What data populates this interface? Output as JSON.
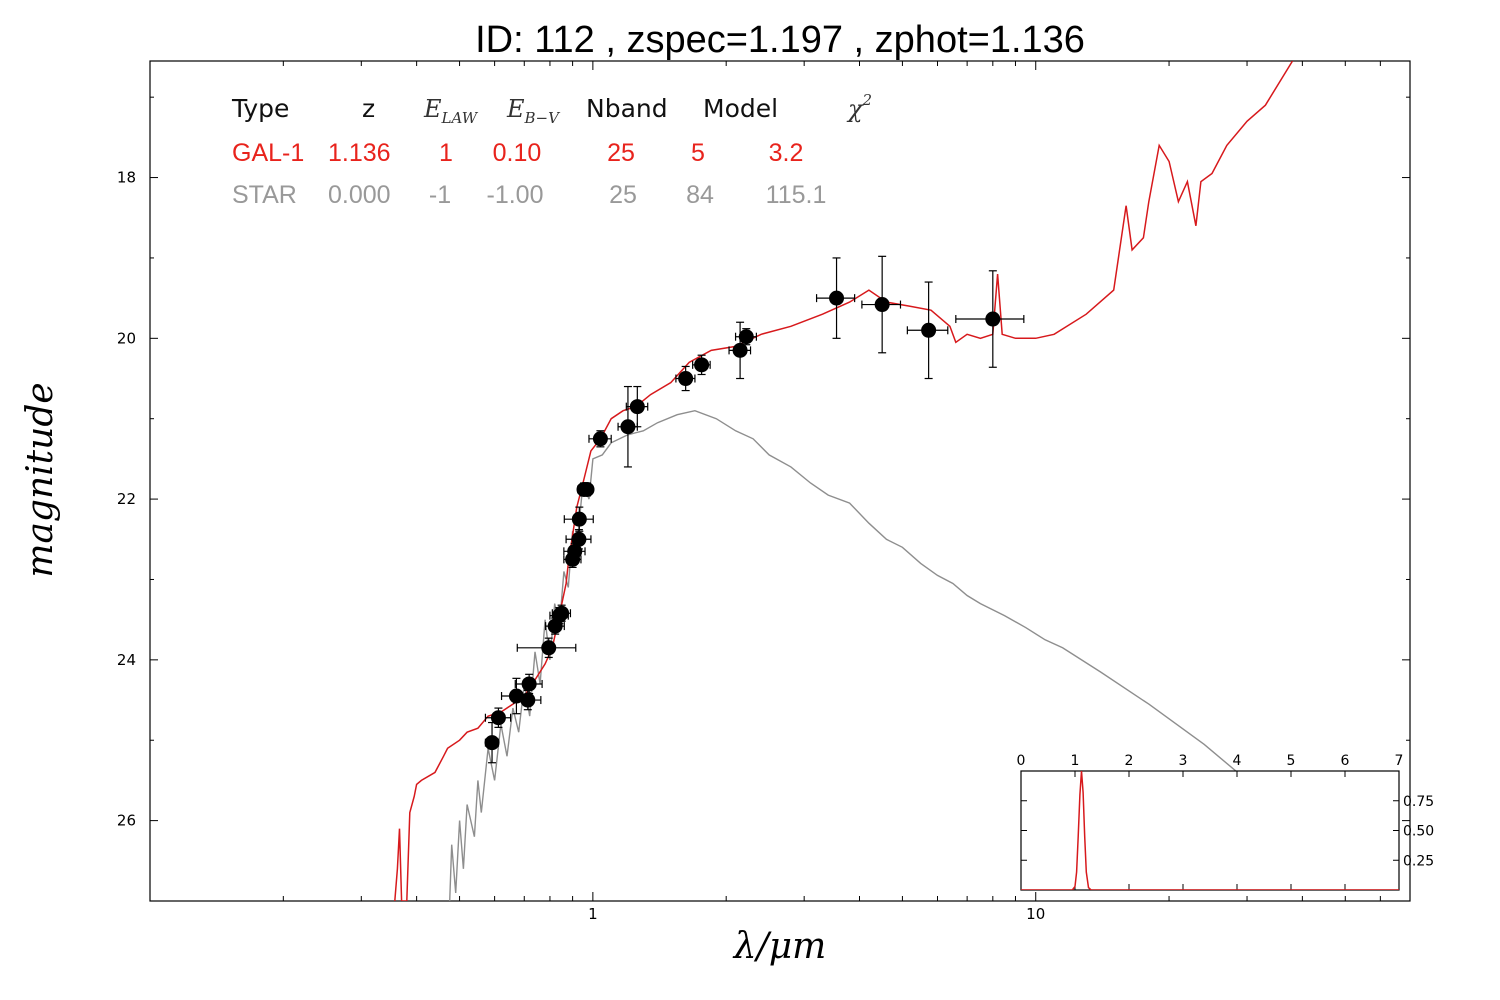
{
  "title": "ID:  112   , zspec=1.197 , zphot=1.136",
  "chart_data": {
    "type": "line",
    "xlabel": "λ/μm",
    "ylabel": "magnitude",
    "x_scale": "log",
    "xlim": [
      0.1,
      70
    ],
    "ylim": [
      27.0,
      16.55
    ],
    "y_inverted": true,
    "x_tick_labels": [
      "1",
      "10"
    ],
    "y_ticks": [
      18,
      20,
      22,
      24,
      26
    ],
    "y_tick_labels": [
      "18",
      "20",
      "22",
      "24",
      "26"
    ],
    "info_table": {
      "headers": {
        "type": "Type",
        "z": "z",
        "elaw": "E",
        "elaw_sub": "LAW",
        "ebv": "E",
        "ebv_sub": "B−V",
        "nband": "Nband",
        "model": "Model",
        "chi2": "χ",
        "chi2_sup": "2"
      },
      "rows": [
        {
          "type": "GAL-1",
          "z": "1.136",
          "elaw": "1",
          "ebv": "0.10",
          "nband": "25",
          "model": "5",
          "chi2": "3.2",
          "color": "#e8231c"
        },
        {
          "type": "STAR",
          "z": "0.000",
          "elaw": "-1",
          "ebv": "-1.00",
          "nband": "25",
          "model": "84",
          "chi2": "115.1",
          "color": "#999999"
        }
      ]
    },
    "series": [
      {
        "color": "#d7191c",
        "points": [
          [
            0.357,
            27.0
          ],
          [
            0.362,
            26.6
          ],
          [
            0.366,
            26.1
          ],
          [
            0.37,
            27.0
          ],
          [
            0.38,
            27.0
          ],
          [
            0.386,
            25.9
          ],
          [
            0.395,
            25.7
          ],
          [
            0.4,
            25.55
          ],
          [
            0.41,
            25.5
          ],
          [
            0.44,
            25.4
          ],
          [
            0.46,
            25.2
          ],
          [
            0.47,
            25.1
          ],
          [
            0.5,
            25.0
          ],
          [
            0.52,
            24.9
          ],
          [
            0.55,
            24.85
          ],
          [
            0.58,
            24.7
          ],
          [
            0.62,
            24.65
          ],
          [
            0.66,
            24.55
          ],
          [
            0.7,
            24.45
          ],
          [
            0.74,
            24.25
          ],
          [
            0.78,
            24.05
          ],
          [
            0.81,
            23.85
          ],
          [
            0.84,
            23.45
          ],
          [
            0.87,
            23.05
          ],
          [
            0.88,
            22.8
          ],
          [
            0.9,
            22.45
          ],
          [
            0.92,
            22.1
          ],
          [
            0.95,
            21.8
          ],
          [
            0.99,
            21.4
          ],
          [
            1.04,
            21.25
          ],
          [
            1.1,
            21.0
          ],
          [
            1.17,
            20.9
          ],
          [
            1.25,
            20.85
          ],
          [
            1.35,
            20.7
          ],
          [
            1.5,
            20.55
          ],
          [
            1.65,
            20.3
          ],
          [
            1.85,
            20.15
          ],
          [
            2.1,
            20.1
          ],
          [
            2.4,
            19.95
          ],
          [
            2.8,
            19.85
          ],
          [
            3.3,
            19.7
          ],
          [
            3.8,
            19.55
          ],
          [
            4.2,
            19.4
          ],
          [
            4.6,
            19.55
          ],
          [
            5.2,
            19.6
          ],
          [
            5.8,
            19.65
          ],
          [
            6.4,
            19.85
          ],
          [
            6.6,
            20.05
          ],
          [
            7.0,
            19.95
          ],
          [
            7.5,
            20.0
          ],
          [
            8.0,
            19.95
          ],
          [
            8.2,
            19.2
          ],
          [
            8.4,
            19.95
          ],
          [
            9.0,
            20.0
          ],
          [
            10.0,
            20.0
          ],
          [
            11.0,
            19.95
          ],
          [
            13.0,
            19.7
          ],
          [
            15.0,
            19.4
          ],
          [
            16.0,
            18.35
          ],
          [
            16.5,
            18.9
          ],
          [
            17.5,
            18.75
          ],
          [
            18.0,
            18.3
          ],
          [
            19.0,
            17.6
          ],
          [
            20.0,
            17.8
          ],
          [
            21.0,
            18.3
          ],
          [
            22.0,
            18.05
          ],
          [
            23.0,
            18.6
          ],
          [
            23.6,
            18.05
          ],
          [
            25.0,
            17.95
          ],
          [
            27.0,
            17.6
          ],
          [
            30.0,
            17.3
          ],
          [
            33.0,
            17.1
          ],
          [
            38.0,
            16.55
          ]
        ]
      },
      {
        "color": "#8e8e8e",
        "points": [
          [
            0.475,
            27.0
          ],
          [
            0.48,
            26.3
          ],
          [
            0.49,
            26.9
          ],
          [
            0.5,
            26.0
          ],
          [
            0.51,
            26.6
          ],
          [
            0.52,
            25.8
          ],
          [
            0.54,
            26.2
          ],
          [
            0.55,
            25.5
          ],
          [
            0.56,
            25.9
          ],
          [
            0.58,
            25.1
          ],
          [
            0.6,
            25.5
          ],
          [
            0.62,
            24.8
          ],
          [
            0.64,
            25.2
          ],
          [
            0.66,
            24.6
          ],
          [
            0.68,
            24.9
          ],
          [
            0.7,
            24.3
          ],
          [
            0.72,
            24.7
          ],
          [
            0.74,
            23.9
          ],
          [
            0.76,
            24.3
          ],
          [
            0.78,
            23.5
          ],
          [
            0.8,
            24.0
          ],
          [
            0.82,
            23.3
          ],
          [
            0.84,
            23.6
          ],
          [
            0.86,
            22.9
          ],
          [
            0.88,
            23.1
          ],
          [
            0.9,
            22.4
          ],
          [
            0.92,
            22.6
          ],
          [
            0.95,
            21.8
          ],
          [
            0.98,
            22.0
          ],
          [
            1.0,
            21.5
          ],
          [
            1.05,
            21.45
          ],
          [
            1.1,
            21.3
          ],
          [
            1.2,
            21.2
          ],
          [
            1.3,
            21.15
          ],
          [
            1.4,
            21.05
          ],
          [
            1.55,
            20.95
          ],
          [
            1.7,
            20.9
          ],
          [
            1.9,
            21.0
          ],
          [
            2.1,
            21.15
          ],
          [
            2.3,
            21.25
          ],
          [
            2.5,
            21.45
          ],
          [
            2.8,
            21.6
          ],
          [
            3.1,
            21.8
          ],
          [
            3.4,
            21.95
          ],
          [
            3.8,
            22.05
          ],
          [
            4.2,
            22.3
          ],
          [
            4.6,
            22.5
          ],
          [
            5.0,
            22.6
          ],
          [
            5.5,
            22.8
          ],
          [
            6.0,
            22.95
          ],
          [
            6.5,
            23.05
          ],
          [
            7.0,
            23.2
          ],
          [
            7.5,
            23.3
          ],
          [
            8.5,
            23.45
          ],
          [
            9.5,
            23.6
          ],
          [
            10.5,
            23.75
          ],
          [
            11.5,
            23.85
          ],
          [
            14.0,
            24.15
          ],
          [
            18.0,
            24.55
          ],
          [
            24.0,
            25.05
          ],
          [
            30.0,
            25.5
          ],
          [
            34.0,
            25.8
          ]
        ]
      }
    ],
    "data_points": [
      {
        "x": 0.592,
        "y": 25.03,
        "yerr": 0.25,
        "xerr": 0.02
      },
      {
        "x": 0.612,
        "y": 24.72,
        "yerr": 0.12,
        "xerr": 0.04
      },
      {
        "x": 0.672,
        "y": 24.45,
        "yerr": 0.22,
        "xerr": 0.05
      },
      {
        "x": 0.713,
        "y": 24.5,
        "yerr": 0.12,
        "xerr": 0.05
      },
      {
        "x": 0.718,
        "y": 24.3,
        "yerr": 0.12,
        "xerr": 0.05
      },
      {
        "x": 0.795,
        "y": 23.85,
        "yerr": 0.12,
        "xerr": 0.12
      },
      {
        "x": 0.822,
        "y": 23.58,
        "yerr": 0.1,
        "xerr": 0.04
      },
      {
        "x": 0.84,
        "y": 23.45,
        "yerr": 0.1,
        "xerr": 0.04
      },
      {
        "x": 0.85,
        "y": 23.42,
        "yerr": 0.1,
        "xerr": 0.04
      },
      {
        "x": 0.9,
        "y": 22.75,
        "yerr": 0.1,
        "xerr": 0.04
      },
      {
        "x": 0.91,
        "y": 22.65,
        "yerr": 0.1,
        "xerr": 0.05
      },
      {
        "x": 0.93,
        "y": 22.5,
        "yerr": 0.12,
        "xerr": 0.06
      },
      {
        "x": 0.932,
        "y": 22.25,
        "yerr": 0.15,
        "xerr": 0.07
      },
      {
        "x": 0.955,
        "y": 21.88,
        "yerr": 0.08,
        "xerr": 0.03
      },
      {
        "x": 0.97,
        "y": 21.88,
        "yerr": 0.08,
        "xerr": 0.03
      },
      {
        "x": 1.04,
        "y": 21.25,
        "yerr": 0.1,
        "xerr": 0.06
      },
      {
        "x": 1.2,
        "y": 21.1,
        "yerr": 0.5,
        "xerr": 0.06
      },
      {
        "x": 1.26,
        "y": 20.85,
        "yerr": 0.25,
        "xerr": 0.07
      },
      {
        "x": 1.62,
        "y": 20.5,
        "yerr": 0.15,
        "xerr": 0.08
      },
      {
        "x": 1.76,
        "y": 20.33,
        "yerr": 0.12,
        "xerr": 0.08
      },
      {
        "x": 2.15,
        "y": 20.15,
        "yerr": 0.35,
        "xerr": 0.12
      },
      {
        "x": 2.22,
        "y": 19.98,
        "yerr": 0.1,
        "xerr": 0.12
      },
      {
        "x": 3.55,
        "y": 19.5,
        "yerr": 0.5,
        "xerr": 0.35
      },
      {
        "x": 4.5,
        "y": 19.58,
        "yerr": 0.6,
        "xerr": 0.45
      },
      {
        "x": 5.73,
        "y": 19.9,
        "yerr": 0.6,
        "xerr": 0.6
      },
      {
        "x": 8.0,
        "y": 19.76,
        "yerr": 0.6,
        "xerr": 1.4
      }
    ],
    "inset": {
      "type": "line",
      "xlim": [
        0,
        7
      ],
      "ylim": [
        0,
        1.0
      ],
      "x_ticks": [
        0,
        1,
        2,
        3,
        4,
        5,
        6,
        7
      ],
      "x_tick_labels": [
        "0",
        "1",
        "2",
        "3",
        "4",
        "5",
        "6",
        "7"
      ],
      "y_ticks": [
        0.25,
        0.5,
        0.75
      ],
      "y_tick_labels": [
        "0.25",
        "0.50",
        "0.75"
      ],
      "color": "#d7191c",
      "points": [
        [
          0.0,
          0.0
        ],
        [
          0.95,
          0.0
        ],
        [
          1.0,
          0.03
        ],
        [
          1.03,
          0.15
        ],
        [
          1.06,
          0.45
        ],
        [
          1.09,
          0.8
        ],
        [
          1.12,
          1.0
        ],
        [
          1.15,
          0.82
        ],
        [
          1.18,
          0.45
        ],
        [
          1.21,
          0.15
        ],
        [
          1.25,
          0.02
        ],
        [
          1.3,
          0.0
        ],
        [
          7.0,
          0.0
        ]
      ]
    }
  }
}
